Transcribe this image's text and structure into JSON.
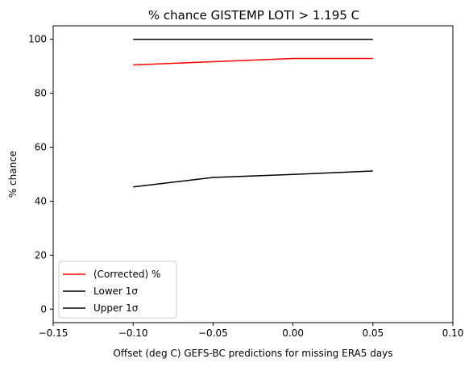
{
  "chart_data": {
    "type": "line",
    "title": "% chance GISTEMP LOTI > 1.195 C",
    "xlabel": "Offset (deg C) GEFS-BC predictions for missing ERA5 days",
    "ylabel": "% chance",
    "xlim": [
      -0.15,
      0.1
    ],
    "ylim": [
      -5,
      105
    ],
    "xticks": [
      -0.15,
      -0.1,
      -0.05,
      0.0,
      0.05,
      0.1
    ],
    "xtick_labels": [
      "−0.15",
      "−0.10",
      "−0.05",
      "0.00",
      "0.05",
      "0.10"
    ],
    "yticks": [
      0,
      20,
      40,
      60,
      80,
      100
    ],
    "ytick_labels": [
      "0",
      "20",
      "40",
      "60",
      "80",
      "100"
    ],
    "x": [
      -0.1,
      -0.05,
      0.0,
      0.05
    ],
    "series": [
      {
        "name": "(Corrected) %",
        "color": "#ff0000",
        "values": [
          90.5,
          91.7,
          92.9,
          92.9
        ]
      },
      {
        "name": "Lower 1σ",
        "color": "#000000",
        "values": [
          45.3,
          48.8,
          49.9,
          51.2
        ]
      },
      {
        "name": "Upper 1σ",
        "color": "#000000",
        "values": [
          100,
          100,
          100,
          100
        ]
      }
    ],
    "legend_position": "lower-left",
    "grid": false
  }
}
